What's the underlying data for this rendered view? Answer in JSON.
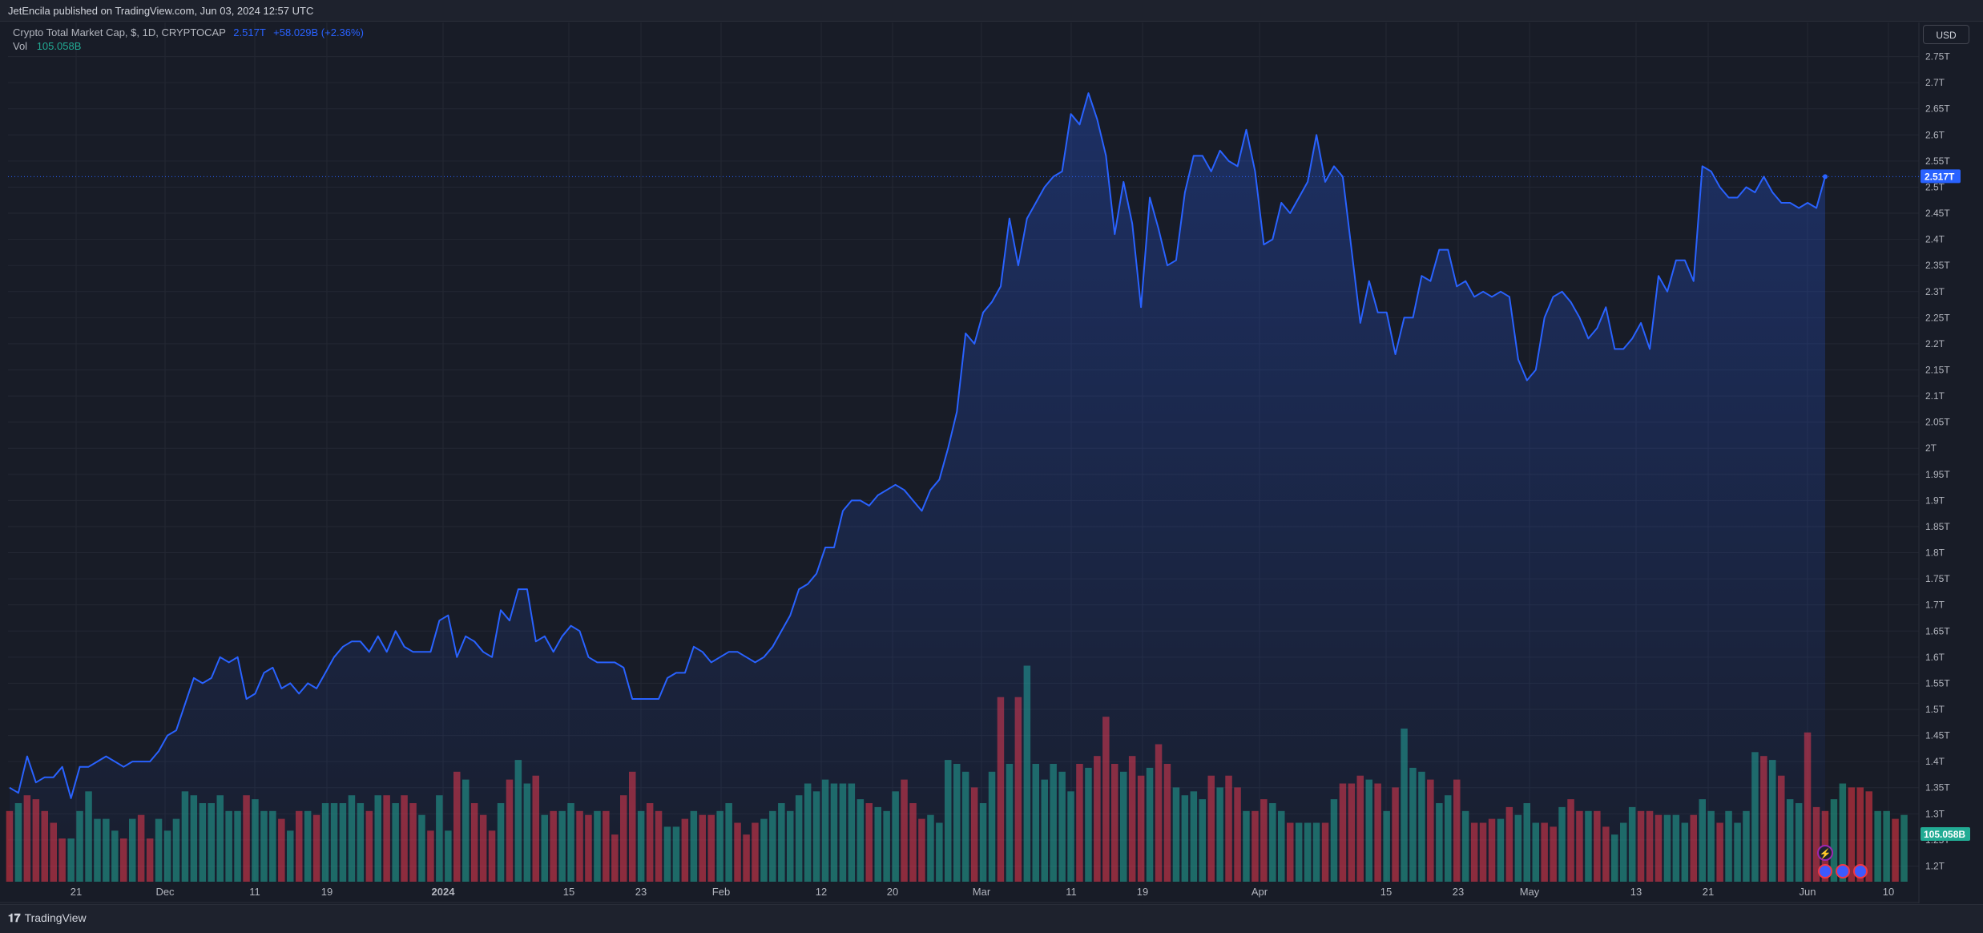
{
  "header": {
    "published_text": "JetEncila published on TradingView.com, Jun 03, 2024 12:57 UTC",
    "symbol_title": "Crypto Total Market Cap, $, 1D, CRYPTOCAP",
    "last_value": "2.517T",
    "change": "+58.029B (+2.36%)",
    "volume_label": "Vol",
    "volume_value": "105.058B",
    "currency_button": "USD"
  },
  "footer": {
    "brand": "TradingView",
    "logo_glyph": "𝟏𝟕"
  },
  "colors": {
    "background": "#181c27",
    "line": "#2962ff",
    "up_volume": "#22ab94",
    "down_volume": "#f23645"
  },
  "chart_data": {
    "type": "area",
    "x_ticks": [
      "21",
      "Dec",
      "11",
      "19",
      "2024",
      "15",
      "23",
      "Feb",
      "12",
      "20",
      "Mar",
      "11",
      "19",
      "Apr",
      "15",
      "23",
      "May",
      "13",
      "21",
      "Jun",
      "10"
    ],
    "ylim": [
      1.17,
      2.8
    ],
    "y_ticks": [
      1.2,
      1.25,
      1.3,
      1.35,
      1.4,
      1.45,
      1.5,
      1.55,
      1.6,
      1.65,
      1.7,
      1.75,
      1.8,
      1.85,
      1.9,
      1.95,
      2.0,
      2.05,
      2.1,
      2.15,
      2.2,
      2.25,
      2.3,
      2.35,
      2.4,
      2.45,
      2.5,
      2.55,
      2.6,
      2.65,
      2.7,
      2.75
    ],
    "y_tick_labels": [
      "1.2T",
      "1.25T",
      "1.3T",
      "1.35T",
      "1.4T",
      "1.45T",
      "1.5T",
      "1.55T",
      "1.6T",
      "1.65T",
      "1.7T",
      "1.75T",
      "1.8T",
      "1.85T",
      "1.9T",
      "1.95T",
      "2T",
      "2.05T",
      "2.1T",
      "2.15T",
      "2.2T",
      "2.25T",
      "2.3T",
      "2.35T",
      "2.4T",
      "2.45T",
      "2.5T",
      "2.55T",
      "2.6T",
      "2.65T",
      "2.7T",
      "2.75T"
    ],
    "last_price_label": "2.517T",
    "last_volume_label": "105.058B",
    "series": [
      {
        "values": [
          1.35,
          1.34,
          1.41,
          1.36,
          1.37,
          1.37,
          1.39,
          1.33,
          1.39,
          1.39,
          1.4,
          1.41,
          1.4,
          1.39,
          1.4,
          1.4,
          1.4,
          1.42,
          1.45,
          1.46,
          1.51,
          1.56,
          1.55,
          1.56,
          1.6,
          1.59,
          1.6,
          1.52,
          1.53,
          1.57,
          1.58,
          1.54,
          1.55,
          1.53,
          1.55,
          1.54,
          1.57,
          1.6,
          1.62,
          1.63,
          1.63,
          1.61,
          1.64,
          1.61,
          1.65,
          1.62,
          1.61,
          1.61,
          1.61,
          1.67,
          1.68,
          1.6,
          1.64,
          1.63,
          1.61,
          1.6,
          1.69,
          1.67,
          1.73,
          1.73,
          1.63,
          1.64,
          1.61,
          1.64,
          1.66,
          1.65,
          1.6,
          1.59,
          1.59,
          1.59,
          1.58,
          1.52,
          1.52,
          1.52,
          1.52,
          1.56,
          1.57,
          1.57,
          1.62,
          1.61,
          1.59,
          1.6,
          1.61,
          1.61,
          1.6,
          1.59,
          1.6,
          1.62,
          1.65,
          1.68,
          1.73,
          1.74,
          1.76,
          1.81,
          1.81,
          1.88,
          1.9,
          1.9,
          1.89,
          1.91,
          1.92,
          1.93,
          1.92,
          1.9,
          1.88,
          1.92,
          1.94,
          2.0,
          2.07,
          2.22,
          2.2,
          2.26,
          2.28,
          2.31,
          2.44,
          2.35,
          2.44,
          2.47,
          2.5,
          2.52,
          2.53,
          2.64,
          2.62,
          2.68,
          2.63,
          2.56,
          2.41,
          2.51,
          2.43,
          2.27,
          2.48,
          2.42,
          2.35,
          2.36,
          2.49,
          2.56,
          2.56,
          2.53,
          2.57,
          2.55,
          2.54,
          2.61,
          2.53,
          2.39,
          2.4,
          2.47,
          2.45,
          2.48,
          2.51,
          2.6,
          2.51,
          2.54,
          2.52,
          2.38,
          2.24,
          2.32,
          2.26,
          2.26,
          2.18,
          2.25,
          2.25,
          2.33,
          2.32,
          2.38,
          2.38,
          2.31,
          2.32,
          2.29,
          2.3,
          2.29,
          2.3,
          2.29,
          2.17,
          2.13,
          2.15,
          2.25,
          2.29,
          2.3,
          2.28,
          2.25,
          2.21,
          2.23,
          2.27,
          2.19,
          2.19,
          2.21,
          2.24,
          2.19,
          2.33,
          2.3,
          2.36,
          2.36,
          2.32,
          2.54,
          2.53,
          2.5,
          2.48,
          2.48,
          2.5,
          2.49,
          2.52,
          2.49,
          2.47,
          2.47,
          2.46,
          2.47,
          2.46,
          2.52
        ]
      },
      {
        "values": [
          36,
          40,
          44,
          42,
          36,
          30,
          22,
          22,
          36,
          46,
          32,
          32,
          26,
          22,
          32,
          34,
          22,
          32,
          26,
          32,
          46,
          44,
          40,
          40,
          44,
          36,
          36,
          44,
          42,
          36,
          36,
          32,
          26,
          36,
          36,
          34,
          40,
          40,
          40,
          44,
          40,
          36,
          44,
          44,
          40,
          44,
          40,
          34,
          26,
          44,
          26,
          56,
          52,
          40,
          34,
          26,
          40,
          52,
          62,
          50,
          54,
          34,
          36,
          36,
          40,
          36,
          34,
          36,
          36,
          24,
          44,
          56,
          36,
          40,
          36,
          28,
          28,
          32,
          36,
          34,
          34,
          36,
          40,
          30,
          24,
          30,
          32,
          36,
          40,
          36,
          44,
          50,
          46,
          52,
          50,
          50,
          50,
          42,
          40,
          38,
          36,
          46,
          52,
          40,
          32,
          34,
          30,
          62,
          60,
          56,
          48,
          40,
          56,
          94,
          60,
          94,
          110,
          60,
          52,
          60,
          56,
          46,
          60,
          58,
          64,
          84,
          60,
          56,
          64,
          54,
          58,
          70,
          60,
          48,
          44,
          46,
          42,
          54,
          48,
          54,
          48,
          36,
          36,
          42,
          40,
          36,
          30,
          30,
          30,
          30,
          30,
          42,
          50,
          50,
          54,
          52,
          50,
          36,
          48,
          78,
          58,
          56,
          52,
          40,
          44,
          52,
          36,
          30,
          30,
          32,
          32,
          38,
          34,
          40,
          30,
          30,
          28,
          38,
          42,
          36,
          36,
          36,
          28,
          24,
          30,
          38,
          36,
          36,
          34,
          34,
          34,
          30,
          34,
          42,
          36,
          30,
          36,
          30,
          36,
          66,
          64,
          62,
          54,
          42,
          40,
          76,
          38,
          36,
          42,
          50,
          48,
          48,
          46,
          36,
          36,
          32,
          34
        ],
        "directions": [
          "d",
          "u",
          "d",
          "d",
          "d",
          "d",
          "d",
          "u",
          "u",
          "u",
          "u",
          "u",
          "u",
          "d",
          "u",
          "d",
          "d",
          "u",
          "u",
          "u",
          "u",
          "u",
          "u",
          "u",
          "u",
          "u",
          "u",
          "d",
          "u",
          "u",
          "u",
          "d",
          "u",
          "d",
          "u",
          "d",
          "u",
          "u",
          "u",
          "u",
          "u",
          "d",
          "u",
          "d",
          "u",
          "d",
          "d",
          "u",
          "d",
          "u",
          "u",
          "d",
          "u",
          "d",
          "d",
          "d",
          "u",
          "d",
          "u",
          "u",
          "d",
          "u",
          "d",
          "u",
          "u",
          "d",
          "d",
          "u",
          "d",
          "d",
          "d",
          "d",
          "u",
          "d",
          "d",
          "u",
          "u",
          "d",
          "u",
          "d",
          "d",
          "u",
          "u",
          "d",
          "d",
          "d",
          "u",
          "u",
          "u",
          "u",
          "u",
          "u",
          "u",
          "u",
          "u",
          "u",
          "u",
          "u",
          "d",
          "u",
          "u",
          "u",
          "d",
          "d",
          "d",
          "u",
          "u",
          "u",
          "u",
          "u",
          "d",
          "u",
          "u",
          "d",
          "u",
          "d",
          "u",
          "u",
          "u",
          "u",
          "u",
          "u",
          "d",
          "u",
          "d",
          "d",
          "d",
          "u",
          "d",
          "d",
          "u",
          "d",
          "d",
          "u",
          "u",
          "u",
          "u",
          "d",
          "u",
          "d",
          "d",
          "u",
          "d",
          "d",
          "u",
          "u",
          "d",
          "u",
          "u",
          "u",
          "d",
          "u",
          "d",
          "d",
          "d",
          "u",
          "d",
          "u",
          "d",
          "u",
          "u",
          "u",
          "d",
          "u",
          "u",
          "d",
          "u",
          "d",
          "d",
          "d",
          "u",
          "d",
          "u",
          "u",
          "u",
          "d",
          "d",
          "u",
          "d",
          "d",
          "u",
          "d",
          "d",
          "u",
          "u",
          "u",
          "d",
          "d",
          "d",
          "u",
          "u",
          "u",
          "d",
          "u",
          "u",
          "d",
          "u",
          "u",
          "u",
          "u",
          "d",
          "u",
          "d",
          "u",
          "u",
          "d",
          "d",
          "d",
          "u",
          "u",
          "d",
          "d",
          "d",
          "u",
          "u",
          "d",
          "u",
          "d",
          "d",
          "u"
        ]
      }
    ]
  }
}
